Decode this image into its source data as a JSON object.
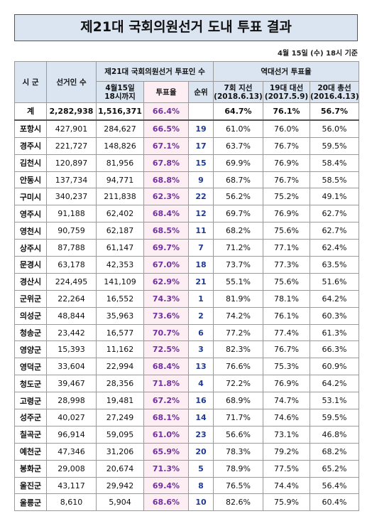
{
  "header": {
    "title": "제21대 국회의원선거 도내 투표 결과",
    "subtitle": "4월 15일 (수) 18시 기준"
  },
  "table": {
    "head_top": [
      "시 군",
      "선거인 수",
      "제21대 국회의원선거 투표인 수",
      "역대선거 투표율"
    ],
    "head_sub": [
      "4월15일\n18시까지",
      "투표율",
      "순위",
      "7회 지선\n(2018.6.13)",
      "19대 대선\n(2017.5.9)",
      "20대 총선\n(2016.4.13)"
    ],
    "rows": [
      [
        "계",
        "2,282,938",
        "1,516,371",
        "66.4%",
        null,
        "64.7%",
        "76.1%",
        "56.7%"
      ],
      [
        "포항시",
        "427,901",
        "284,627",
        "66.5%",
        "19",
        "61.0%",
        "76.0%",
        "56.0%"
      ],
      [
        "경주시",
        "221,727",
        "148,826",
        "67.1%",
        "17",
        "63.7%",
        "76.7%",
        "59.5%"
      ],
      [
        "김천시",
        "120,897",
        "81,956",
        "67.8%",
        "15",
        "69.9%",
        "76.9%",
        "58.4%"
      ],
      [
        "안동시",
        "137,734",
        "94,771",
        "68.8%",
        "9",
        "68.7%",
        "76.7%",
        "58.5%"
      ],
      [
        "구미시",
        "340,237",
        "211,838",
        "62.3%",
        "22",
        "56.2%",
        "75.2%",
        "49.1%"
      ],
      [
        "영주시",
        "91,188",
        "62,402",
        "68.4%",
        "12",
        "69.7%",
        "76.9%",
        "62.7%"
      ],
      [
        "영천시",
        "90,759",
        "62,187",
        "68.5%",
        "11",
        "68.2%",
        "75.6%",
        "62.7%"
      ],
      [
        "상주시",
        "87,788",
        "61,147",
        "69.7%",
        "7",
        "71.2%",
        "77.1%",
        "62.4%"
      ],
      [
        "문경시",
        "63,178",
        "42,353",
        "67.0%",
        "18",
        "73.7%",
        "77.3%",
        "63.5%"
      ],
      [
        "경산시",
        "224,495",
        "141,109",
        "62.9%",
        "21",
        "55.1%",
        "75.6%",
        "51.6%"
      ],
      [
        "군위군",
        "22,264",
        "16,552",
        "74.3%",
        "1",
        "81.9%",
        "78.1%",
        "64.2%"
      ],
      [
        "의성군",
        "48,844",
        "35,963",
        "73.6%",
        "2",
        "74.2%",
        "76.1%",
        "60.3%"
      ],
      [
        "청송군",
        "23,442",
        "16,577",
        "70.7%",
        "6",
        "77.2%",
        "77.4%",
        "61.3%"
      ],
      [
        "영양군",
        "15,393",
        "11,162",
        "72.5%",
        "3",
        "82.3%",
        "76.7%",
        "66.3%"
      ],
      [
        "영덕군",
        "33,604",
        "22,994",
        "68.4%",
        "13",
        "76.6%",
        "75.3%",
        "60.9%"
      ],
      [
        "청도군",
        "39,467",
        "28,356",
        "71.8%",
        "4",
        "72.2%",
        "76.9%",
        "64.2%"
      ],
      [
        "고령군",
        "28,998",
        "19,481",
        "67.2%",
        "16",
        "68.9%",
        "74.7%",
        "53.1%"
      ],
      [
        "성주군",
        "40,027",
        "27,249",
        "68.1%",
        "14",
        "71.7%",
        "74.6%",
        "59.5%"
      ],
      [
        "칠곡군",
        "96,914",
        "59,095",
        "61.0%",
        "23",
        "56.6%",
        "73.1%",
        "46.8%"
      ],
      [
        "예천군",
        "47,346",
        "31,206",
        "65.9%",
        "20",
        "78.3%",
        "79.2%",
        "68.2%"
      ],
      [
        "봉화군",
        "29,008",
        "20,674",
        "71.3%",
        "5",
        "78.9%",
        "77.5%",
        "65.2%"
      ],
      [
        "울진군",
        "43,117",
        "29,942",
        "69.4%",
        "8",
        "76.5%",
        "74.4%",
        "56.4%"
      ],
      [
        "울릉군",
        "8,610",
        "5,904",
        "68.6%",
        "10",
        "82.6%",
        "75.9%",
        "60.4%"
      ]
    ]
  }
}
